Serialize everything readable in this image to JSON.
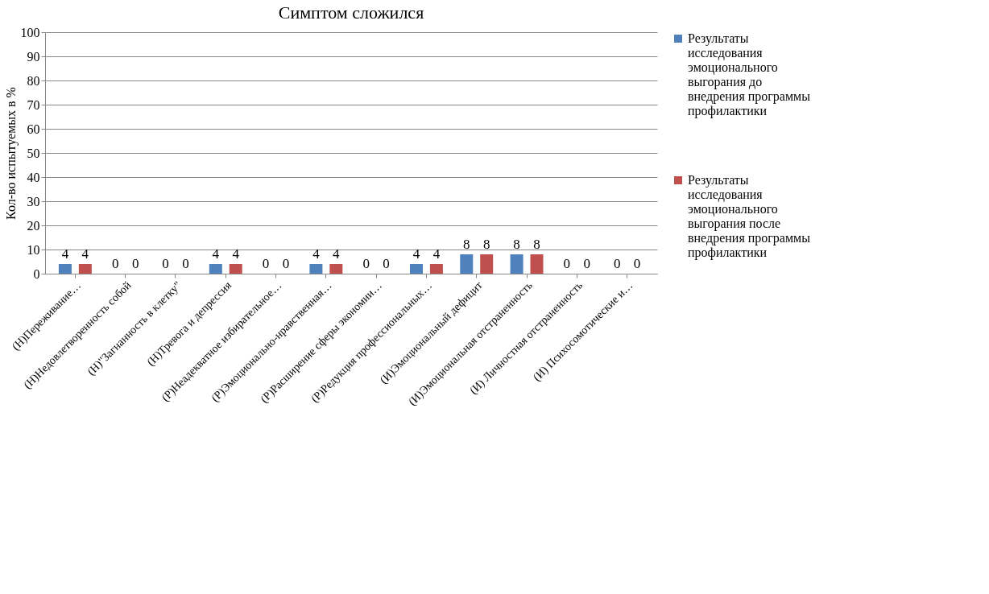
{
  "chart_data": {
    "type": "bar",
    "title": "Симптом сложился",
    "ylabel": "Кол-во испытуемых в %",
    "categories": [
      "(Н)Переживание…",
      "(Н)Недовлетворенность собой",
      "(Н)\"Загнанность в клетку\"",
      "(Н)Тревога и депрессия",
      "(Р)Неадекватное избирательное…",
      "(Р)Эмоционально-нравственная…",
      "(Р)Расширение сферы экономии…",
      "(Р)Редукция профессиональных…",
      "(И)Эмоциональный дефицит",
      "(И)Эмоциональная отстраненность",
      "(И) Личностная отстраненность",
      "(И) Психосомотические и…"
    ],
    "series": [
      {
        "name": "Результаты исследования эмоционального выгорания до внедрения программы профилактики",
        "color": "#4f81bd",
        "values": [
          4,
          0,
          0,
          4,
          0,
          4,
          0,
          4,
          8,
          8,
          0,
          0
        ]
      },
      {
        "name": "Результаты исследования эмоционального выгорания после внедрения программы профилактики",
        "color": "#c0504d",
        "values": [
          4,
          0,
          0,
          4,
          0,
          4,
          0,
          4,
          8,
          8,
          0,
          0
        ]
      }
    ],
    "ylim": [
      0,
      100
    ],
    "yticks": [
      0,
      10,
      20,
      30,
      40,
      50,
      60,
      70,
      80,
      90,
      100
    ],
    "grid": "y",
    "legend": "right",
    "data_labels": true
  }
}
